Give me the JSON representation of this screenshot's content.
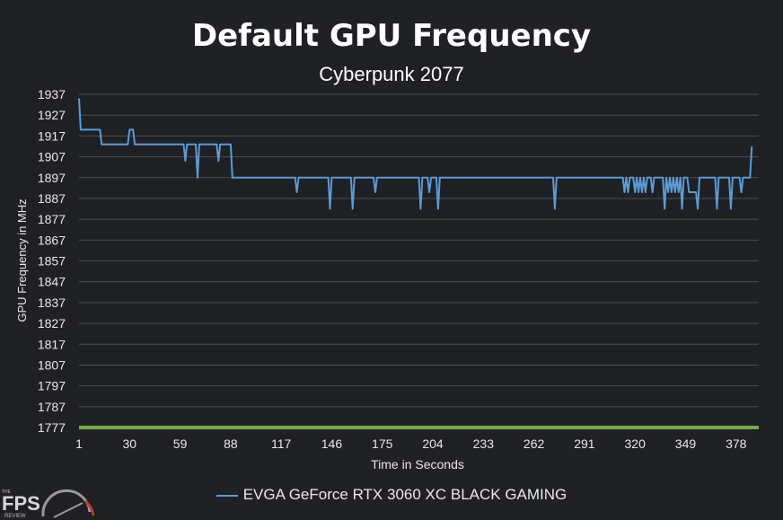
{
  "chart_data": {
    "type": "line",
    "title": "Default GPU Frequency",
    "subtitle": "Cyberpunk 2077",
    "xlabel": "Time in Seconds",
    "ylabel": "GPU Frequency in MHz",
    "ylim": [
      1777,
      1937
    ],
    "xlim": [
      1,
      391
    ],
    "yticks": [
      "1937",
      "1927",
      "1917",
      "1907",
      "1897",
      "1887",
      "1877",
      "1867",
      "1857",
      "1847",
      "1837",
      "1827",
      "1817",
      "1807",
      "1797",
      "1787",
      "1777"
    ],
    "xticks": [
      "1",
      "30",
      "59",
      "88",
      "117",
      "146",
      "175",
      "204",
      "233",
      "262",
      "291",
      "320",
      "349",
      "378"
    ],
    "grid": true,
    "legend_position": "bottom",
    "series": [
      {
        "name": "EVGA GeForce RTX 3060 XC BLACK GAMING",
        "color": "#5b9bd5",
        "points": [
          [
            1,
            1935
          ],
          [
            2,
            1920
          ],
          [
            10,
            1920
          ],
          [
            11,
            1920
          ],
          [
            13,
            1920
          ],
          [
            14,
            1913
          ],
          [
            29,
            1913
          ],
          [
            30,
            1920
          ],
          [
            32,
            1920
          ],
          [
            33,
            1913
          ],
          [
            61,
            1913
          ],
          [
            62,
            1905
          ],
          [
            63,
            1913
          ],
          [
            68,
            1913
          ],
          [
            69,
            1897
          ],
          [
            70,
            1913
          ],
          [
            80,
            1913
          ],
          [
            81,
            1905
          ],
          [
            82,
            1913
          ],
          [
            86,
            1913
          ],
          [
            87,
            1913
          ],
          [
            88,
            1913
          ],
          [
            89,
            1897
          ],
          [
            125,
            1897
          ],
          [
            126,
            1890
          ],
          [
            127,
            1897
          ],
          [
            144,
            1897
          ],
          [
            145,
            1882
          ],
          [
            146,
            1897
          ],
          [
            157,
            1897
          ],
          [
            158,
            1882
          ],
          [
            159,
            1897
          ],
          [
            170,
            1897
          ],
          [
            171,
            1890
          ],
          [
            172,
            1897
          ],
          [
            196,
            1897
          ],
          [
            197,
            1882
          ],
          [
            198,
            1897
          ],
          [
            201,
            1897
          ],
          [
            202,
            1890
          ],
          [
            203,
            1897
          ],
          [
            206,
            1897
          ],
          [
            207,
            1882
          ],
          [
            208,
            1897
          ],
          [
            273,
            1897
          ],
          [
            274,
            1882
          ],
          [
            275,
            1897
          ],
          [
            313,
            1897
          ],
          [
            314,
            1890
          ],
          [
            315,
            1897
          ],
          [
            316,
            1890
          ],
          [
            317,
            1897
          ],
          [
            319,
            1897
          ],
          [
            320,
            1890
          ],
          [
            321,
            1897
          ],
          [
            322,
            1890
          ],
          [
            323,
            1897
          ],
          [
            324,
            1890
          ],
          [
            325,
            1897
          ],
          [
            326,
            1890
          ],
          [
            327,
            1897
          ],
          [
            329,
            1897
          ],
          [
            330,
            1890
          ],
          [
            331,
            1897
          ],
          [
            336,
            1897
          ],
          [
            337,
            1882
          ],
          [
            338,
            1897
          ],
          [
            339,
            1890
          ],
          [
            340,
            1897
          ],
          [
            341,
            1890
          ],
          [
            342,
            1897
          ],
          [
            343,
            1890
          ],
          [
            344,
            1897
          ],
          [
            345,
            1890
          ],
          [
            346,
            1897
          ],
          [
            347,
            1882
          ],
          [
            348,
            1897
          ],
          [
            350,
            1897
          ],
          [
            351,
            1890
          ],
          [
            355,
            1890
          ],
          [
            356,
            1882
          ],
          [
            357,
            1897
          ],
          [
            366,
            1897
          ],
          [
            367,
            1882
          ],
          [
            368,
            1897
          ],
          [
            374,
            1897
          ],
          [
            375,
            1882
          ],
          [
            376,
            1897
          ],
          [
            380,
            1897
          ],
          [
            381,
            1890
          ],
          [
            382,
            1897
          ],
          [
            386,
            1897
          ],
          [
            387,
            1912
          ]
        ]
      },
      {
        "name": "",
        "color": "#70ad47",
        "points": [
          [
            1,
            1777
          ],
          [
            391,
            1777
          ]
        ]
      }
    ]
  },
  "legend": {
    "label": "EVGA GeForce RTX 3060 XC BLACK GAMING"
  },
  "logo": {
    "small_text": "THE",
    "main_text": "FPS",
    "sub_text": "REVIEW"
  }
}
